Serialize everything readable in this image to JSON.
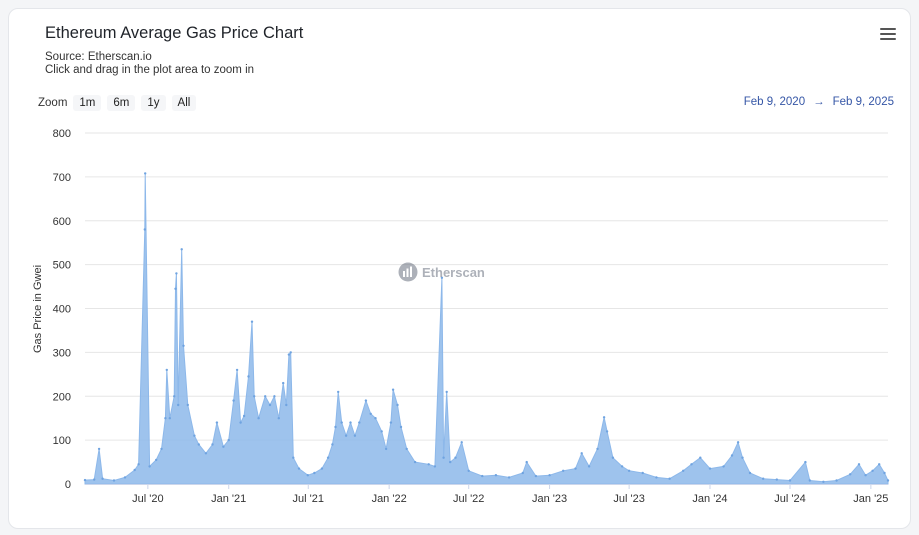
{
  "header": {
    "title": "Ethereum Average Gas Price Chart",
    "source": "Source: Etherscan.io",
    "hint": "Click and drag in the plot area to zoom in"
  },
  "zoom": {
    "label": "Zoom",
    "buttons": [
      "1m",
      "6m",
      "1y",
      "All"
    ]
  },
  "range": {
    "from": "Feb 9, 2020",
    "arrow": "→",
    "to": "Feb 9, 2025"
  },
  "watermark": "Etherscan",
  "menu_icon": "hamburger-menu-icon",
  "colors": {
    "series": "#8db8ea",
    "grid": "#e6e6e6",
    "accent": "#3556a6"
  },
  "chart_data": {
    "type": "area",
    "title": "Ethereum Average Gas Price Chart",
    "xlabel": "",
    "ylabel": "Gas Price in Gwei",
    "ylim": [
      0,
      800
    ],
    "y_ticks": [
      0,
      100,
      200,
      300,
      400,
      500,
      600,
      700,
      800
    ],
    "x_tick_labels": [
      "Jul '20",
      "Jan '21",
      "Jul '21",
      "Jan '22",
      "Jul '22",
      "Jan '23",
      "Jul '23",
      "Jan '24",
      "Jul '24",
      "Jan '25"
    ],
    "x_tick_dates": [
      "2020-07-01",
      "2021-01-01",
      "2021-07-01",
      "2022-01-01",
      "2022-07-01",
      "2023-01-01",
      "2023-07-01",
      "2024-01-01",
      "2024-07-01",
      "2025-01-01"
    ],
    "x_range": [
      "2020-02-09",
      "2025-02-09"
    ],
    "grid": true,
    "legend": "none",
    "series": [
      {
        "values_date_gwei": [
          [
            "2020-02-09",
            9
          ],
          [
            "2020-03-01",
            10
          ],
          [
            "2020-03-12",
            80
          ],
          [
            "2020-03-20",
            12
          ],
          [
            "2020-04-15",
            8
          ],
          [
            "2020-05-10",
            15
          ],
          [
            "2020-06-01",
            32
          ],
          [
            "2020-06-10",
            45
          ],
          [
            "2020-06-24",
            580
          ],
          [
            "2020-06-25",
            708
          ],
          [
            "2020-07-05",
            40
          ],
          [
            "2020-07-20",
            55
          ],
          [
            "2020-08-01",
            80
          ],
          [
            "2020-08-10",
            150
          ],
          [
            "2020-08-13",
            260
          ],
          [
            "2020-08-20",
            150
          ],
          [
            "2020-08-30",
            200
          ],
          [
            "2020-09-02",
            445
          ],
          [
            "2020-09-04",
            480
          ],
          [
            "2020-09-08",
            180
          ],
          [
            "2020-09-16",
            535
          ],
          [
            "2020-09-20",
            315
          ],
          [
            "2020-09-30",
            180
          ],
          [
            "2020-10-15",
            110
          ],
          [
            "2020-10-25",
            90
          ],
          [
            "2020-11-10",
            70
          ],
          [
            "2020-11-25",
            90
          ],
          [
            "2020-12-05",
            140
          ],
          [
            "2020-12-20",
            85
          ],
          [
            "2021-01-01",
            100
          ],
          [
            "2021-01-12",
            190
          ],
          [
            "2021-01-20",
            260
          ],
          [
            "2021-01-28",
            140
          ],
          [
            "2021-02-05",
            155
          ],
          [
            "2021-02-15",
            245
          ],
          [
            "2021-02-23",
            370
          ],
          [
            "2021-02-28",
            200
          ],
          [
            "2021-03-10",
            150
          ],
          [
            "2021-03-25",
            200
          ],
          [
            "2021-04-05",
            180
          ],
          [
            "2021-04-15",
            200
          ],
          [
            "2021-04-25",
            150
          ],
          [
            "2021-05-05",
            230
          ],
          [
            "2021-05-12",
            180
          ],
          [
            "2021-05-18",
            295
          ],
          [
            "2021-05-22",
            300
          ],
          [
            "2021-05-28",
            60
          ],
          [
            "2021-06-10",
            35
          ],
          [
            "2021-06-30",
            20
          ],
          [
            "2021-07-15",
            25
          ],
          [
            "2021-08-01",
            35
          ],
          [
            "2021-08-15",
            60
          ],
          [
            "2021-08-25",
            90
          ],
          [
            "2021-09-01",
            130
          ],
          [
            "2021-09-07",
            210
          ],
          [
            "2021-09-15",
            140
          ],
          [
            "2021-09-25",
            110
          ],
          [
            "2021-10-05",
            140
          ],
          [
            "2021-10-15",
            110
          ],
          [
            "2021-10-25",
            140
          ],
          [
            "2021-11-09",
            190
          ],
          [
            "2021-11-20",
            160
          ],
          [
            "2021-12-01",
            150
          ],
          [
            "2021-12-15",
            120
          ],
          [
            "2021-12-25",
            80
          ],
          [
            "2022-01-05",
            140
          ],
          [
            "2022-01-10",
            215
          ],
          [
            "2022-01-20",
            180
          ],
          [
            "2022-01-28",
            130
          ],
          [
            "2022-02-10",
            80
          ],
          [
            "2022-03-01",
            50
          ],
          [
            "2022-04-01",
            45
          ],
          [
            "2022-04-15",
            40
          ],
          [
            "2022-05-01",
            470
          ],
          [
            "2022-05-05",
            60
          ],
          [
            "2022-05-12",
            210
          ],
          [
            "2022-05-20",
            50
          ],
          [
            "2022-06-01",
            60
          ],
          [
            "2022-06-15",
            95
          ],
          [
            "2022-07-01",
            30
          ],
          [
            "2022-08-01",
            18
          ],
          [
            "2022-09-01",
            20
          ],
          [
            "2022-10-01",
            15
          ],
          [
            "2022-11-01",
            25
          ],
          [
            "2022-11-10",
            50
          ],
          [
            "2022-12-01",
            18
          ],
          [
            "2023-01-01",
            20
          ],
          [
            "2023-02-01",
            30
          ],
          [
            "2023-03-01",
            35
          ],
          [
            "2023-03-15",
            70
          ],
          [
            "2023-04-01",
            40
          ],
          [
            "2023-04-20",
            80
          ],
          [
            "2023-05-05",
            152
          ],
          [
            "2023-05-12",
            120
          ],
          [
            "2023-05-25",
            60
          ],
          [
            "2023-06-15",
            40
          ],
          [
            "2023-07-01",
            30
          ],
          [
            "2023-08-01",
            25
          ],
          [
            "2023-09-01",
            15
          ],
          [
            "2023-10-01",
            12
          ],
          [
            "2023-11-01",
            30
          ],
          [
            "2023-11-20",
            45
          ],
          [
            "2023-12-10",
            60
          ],
          [
            "2024-01-01",
            35
          ],
          [
            "2024-02-01",
            40
          ],
          [
            "2024-02-20",
            65
          ],
          [
            "2024-03-05",
            95
          ],
          [
            "2024-03-15",
            60
          ],
          [
            "2024-04-01",
            25
          ],
          [
            "2024-05-01",
            12
          ],
          [
            "2024-06-01",
            10
          ],
          [
            "2024-07-01",
            8
          ],
          [
            "2024-08-05",
            50
          ],
          [
            "2024-08-15",
            8
          ],
          [
            "2024-09-15",
            5
          ],
          [
            "2024-10-15",
            8
          ],
          [
            "2024-11-15",
            22
          ],
          [
            "2024-12-05",
            45
          ],
          [
            "2024-12-20",
            20
          ],
          [
            "2025-01-05",
            30
          ],
          [
            "2025-01-20",
            45
          ],
          [
            "2025-02-01",
            25
          ],
          [
            "2025-02-09",
            8
          ]
        ]
      }
    ]
  }
}
